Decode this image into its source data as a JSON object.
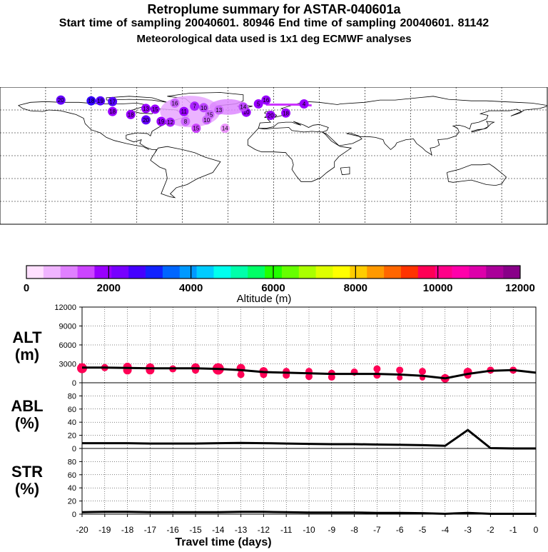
{
  "header": {
    "title": "Retroplume summary for ASTAR-040601a",
    "sampling": "Start time of sampling 20040601. 80946     End time of sampling 20040601. 81142",
    "meteo": "Meteorological data used is 1x1 deg ECMWF analyses"
  },
  "map": {
    "track_color": "#cc33ff",
    "plume_labels": [
      {
        "t": "20",
        "lon": -140,
        "lat": 73,
        "c": "#6600ff"
      },
      {
        "t": "18",
        "lon": -120,
        "lat": 72,
        "c": "#3300ff"
      },
      {
        "t": "19",
        "lon": -114,
        "lat": 72,
        "c": "#5500ff"
      },
      {
        "t": "17",
        "lon": -106,
        "lat": 71,
        "c": "#5500ff"
      },
      {
        "t": "16",
        "lon": -65,
        "lat": 69,
        "c": "#cc66ff"
      },
      {
        "t": "13",
        "lon": -84,
        "lat": 62,
        "c": "#9900ff"
      },
      {
        "t": "15",
        "lon": -78,
        "lat": 61,
        "c": "#9900ff"
      },
      {
        "t": "11",
        "lon": -59,
        "lat": 58,
        "c": "#9900ff"
      },
      {
        "t": "7",
        "lon": -52,
        "lat": 65,
        "c": "#aa22ff"
      },
      {
        "t": "10",
        "lon": -46,
        "lat": 63,
        "c": "#bb44ff"
      },
      {
        "t": "13",
        "lon": -36,
        "lat": 60,
        "c": "#cc66ff"
      },
      {
        "t": "15",
        "lon": -42,
        "lat": 54,
        "c": "#cc66ff"
      },
      {
        "t": "18",
        "lon": -106,
        "lat": 58,
        "c": "#9900ff"
      },
      {
        "t": "18",
        "lon": -94,
        "lat": 54,
        "c": "#9900ff"
      },
      {
        "t": "20",
        "lon": -84,
        "lat": 47,
        "c": "#6600ff"
      },
      {
        "t": "19",
        "lon": -74,
        "lat": 45,
        "c": "#9900ff"
      },
      {
        "t": "12",
        "lon": -68,
        "lat": 44,
        "c": "#aa22ff"
      },
      {
        "t": "8",
        "lon": -58,
        "lat": 45,
        "c": "#cc66ff"
      },
      {
        "t": "10",
        "lon": -44,
        "lat": 47,
        "c": "#cc66ff"
      },
      {
        "t": "15",
        "lon": -51,
        "lat": 36,
        "c": "#cc44ff"
      },
      {
        "t": "14",
        "lon": -32,
        "lat": 36,
        "c": "#ee99ff"
      },
      {
        "t": "16",
        "lon": -5,
        "lat": 73,
        "c": "#9900ff"
      },
      {
        "t": "5",
        "lon": -10,
        "lat": 68,
        "c": "#9900ff"
      },
      {
        "t": "4",
        "lon": 20,
        "lat": 68,
        "c": "#9900ff"
      },
      {
        "t": "20",
        "lon": -2,
        "lat": 53,
        "c": "#9900ff"
      },
      {
        "t": "18",
        "lon": 8,
        "lat": 56,
        "c": "#9900ff"
      },
      {
        "t": "10",
        "lon": -18,
        "lat": 57,
        "c": "#9900ff"
      },
      {
        "t": "14",
        "lon": -20,
        "lat": 64,
        "c": "#bb44ff"
      }
    ]
  },
  "colorbar": {
    "colors": [
      "#ffe0ff",
      "#f0b4ff",
      "#e080ff",
      "#cc44ff",
      "#9900ff",
      "#7700ff",
      "#4400ff",
      "#1122ff",
      "#0066ff",
      "#0099ff",
      "#00ccff",
      "#00ffee",
      "#00ffaa",
      "#00ff66",
      "#22ff00",
      "#66ff00",
      "#aaff00",
      "#ddff00",
      "#ffff00",
      "#ffcc00",
      "#ff9900",
      "#ff6600",
      "#ff3300",
      "#ff0055",
      "#ff0088",
      "#ff00aa",
      "#dd00aa",
      "#aa0099",
      "#880088"
    ],
    "labels": [
      "0",
      "2000",
      "4000",
      "6000",
      "8000",
      "10000",
      "12000"
    ],
    "title": "Altitude (m)"
  },
  "chart_data": [
    {
      "type": "line",
      "title": "ALT (m)",
      "ylabel_line1": "ALT",
      "ylabel_line2": "(m)",
      "x": [
        -20,
        -19,
        -18,
        -17,
        -16,
        -15,
        -14,
        -13,
        -12,
        -11,
        -10,
        -9,
        -8,
        -7,
        -6,
        -5,
        -4,
        -3,
        -2,
        -1,
        0
      ],
      "y": [
        2400,
        2400,
        2350,
        2300,
        2300,
        2300,
        2200,
        2000,
        1700,
        1600,
        1500,
        1400,
        1400,
        1400,
        1300,
        1100,
        700,
        1400,
        1900,
        2000,
        1600
      ],
      "ylim": [
        0,
        12000
      ],
      "yticks": [
        "0",
        "3000",
        "6000",
        "9000",
        "12000"
      ],
      "markers": {
        "color": "#ff0055",
        "x": [
          -20,
          -19,
          -18,
          -18,
          -17,
          -17,
          -16,
          -15,
          -15,
          -14,
          -14,
          -13,
          -13,
          -12,
          -12,
          -11,
          -11,
          -10,
          -10,
          -9,
          -9,
          -8,
          -7,
          -7,
          -6,
          -6,
          -5,
          -5,
          -4,
          -3,
          -3,
          -2,
          -1
        ],
        "y": [
          2300,
          2400,
          2500,
          2000,
          2400,
          2000,
          2200,
          2400,
          2000,
          2200,
          2100,
          2300,
          1300,
          1800,
          1300,
          1800,
          1200,
          1800,
          1000,
          1500,
          900,
          1700,
          2200,
          1200,
          2000,
          800,
          1800,
          800,
          700,
          1700,
          1200,
          2000,
          2000
        ],
        "size": [
          7,
          5,
          6,
          6,
          6,
          6,
          5,
          6,
          5,
          8,
          7,
          6,
          5,
          6,
          5,
          5,
          5,
          5,
          5,
          5,
          5,
          5,
          5,
          5,
          5,
          4,
          5,
          4,
          6,
          6,
          5,
          5,
          5
        ]
      }
    },
    {
      "type": "line",
      "title": "ABL (%)",
      "ylabel_line1": "ABL",
      "ylabel_line2": "(%)",
      "x": [
        -20,
        -19,
        -18,
        -17,
        -16,
        -15,
        -14,
        -13,
        -12,
        -11,
        -10,
        -9,
        -8,
        -7,
        -6,
        -5,
        -4,
        -3,
        -2,
        -1,
        0
      ],
      "y": [
        8,
        8,
        8,
        7.5,
        7.5,
        7.5,
        8,
        8.5,
        8,
        7.5,
        7,
        6.5,
        6.5,
        6,
        5.5,
        5,
        4,
        28,
        0.5,
        0,
        0
      ],
      "ylim": [
        0,
        100
      ],
      "yticks": [
        "0",
        "20",
        "40",
        "60",
        "80"
      ]
    },
    {
      "type": "line",
      "title": "STR (%)",
      "ylabel_line1": "STR",
      "ylabel_line2": "(%)",
      "x": [
        -20,
        -19,
        -18,
        -17,
        -16,
        -15,
        -14,
        -13,
        -12,
        -11,
        -10,
        -9,
        -8,
        -7,
        -6,
        -5,
        -4,
        -3,
        -2,
        -1,
        0
      ],
      "y": [
        3,
        3.5,
        3.5,
        3,
        3,
        3,
        3,
        3.5,
        3.5,
        3,
        2.5,
        2.5,
        2.5,
        2,
        2,
        1.5,
        0.5,
        2,
        0.5,
        0.5,
        0.5
      ],
      "ylim": [
        0,
        100
      ],
      "yticks": [
        "0",
        "20",
        "40",
        "60",
        "80"
      ],
      "xlabel": "Travel time (days)",
      "xticks": [
        "-20",
        "-19",
        "-18",
        "-17",
        "-16",
        "-15",
        "-14",
        "-13",
        "-12",
        "-11",
        "-10",
        "-9",
        "-8",
        "-7",
        "-6",
        "-5",
        "-4",
        "-3",
        "-2",
        "-1",
        "0"
      ]
    }
  ]
}
